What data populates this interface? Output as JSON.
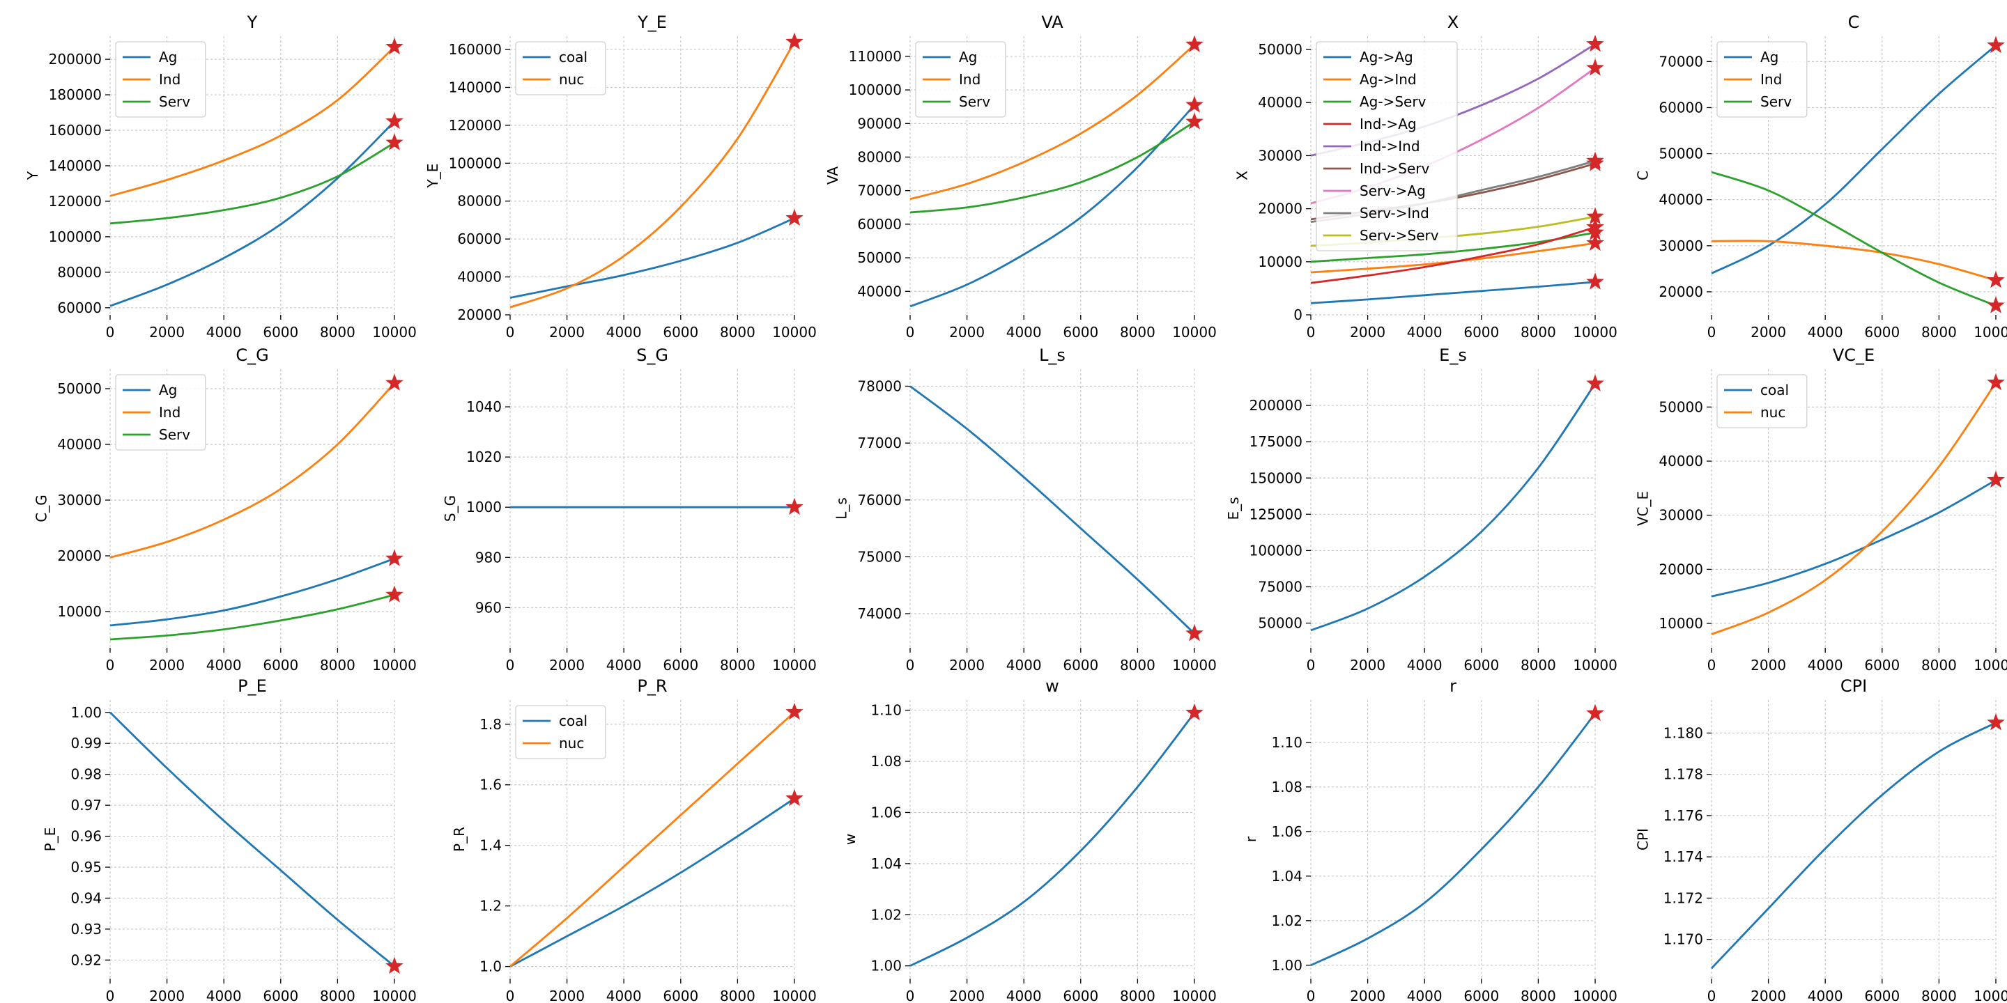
{
  "chart_data": [
    {
      "type": "line",
      "title": "Y",
      "ylabel": "Y",
      "xlim": [
        0,
        10000
      ],
      "ylim": [
        56000,
        213000
      ],
      "yticks": [
        60000,
        80000,
        100000,
        120000,
        140000,
        160000,
        180000,
        200000
      ],
      "series": [
        {
          "name": "Ag",
          "x": [
            0,
            2000,
            4000,
            6000,
            8000,
            10000
          ],
          "values": [
            61000,
            73000,
            88000,
            107000,
            133000,
            165000
          ]
        },
        {
          "name": "Ind",
          "x": [
            0,
            2000,
            4000,
            6000,
            8000,
            10000
          ],
          "values": [
            123000,
            132000,
            143000,
            157000,
            177000,
            207000
          ]
        },
        {
          "name": "Serv",
          "x": [
            0,
            2000,
            4000,
            6000,
            8000,
            10000
          ],
          "values": [
            107500,
            110500,
            115000,
            122000,
            134000,
            153000
          ]
        }
      ],
      "legend": "upper-left"
    },
    {
      "type": "line",
      "title": "Y_E",
      "ylabel": "Y_E",
      "xlim": [
        0,
        10000
      ],
      "ylim": [
        20000,
        167000
      ],
      "yticks": [
        20000,
        40000,
        60000,
        80000,
        100000,
        120000,
        140000,
        160000
      ],
      "series": [
        {
          "name": "coal",
          "x": [
            0,
            2000,
            4000,
            6000,
            8000,
            10000
          ],
          "values": [
            29000,
            35000,
            41000,
            48500,
            58000,
            71000
          ]
        },
        {
          "name": "nuc",
          "x": [
            0,
            2000,
            4000,
            6000,
            8000,
            10000
          ],
          "values": [
            24000,
            34000,
            51000,
            77000,
            113000,
            164000
          ]
        }
      ],
      "legend": "upper-left"
    },
    {
      "type": "line",
      "title": "VA",
      "ylabel": "VA",
      "xlim": [
        0,
        10000
      ],
      "ylim": [
        33000,
        116000
      ],
      "yticks": [
        40000,
        50000,
        60000,
        70000,
        80000,
        90000,
        100000,
        110000
      ],
      "series": [
        {
          "name": "Ag",
          "x": [
            0,
            2000,
            4000,
            6000,
            8000,
            10000
          ],
          "values": [
            35500,
            42000,
            51000,
            62000,
            77000,
            95500
          ]
        },
        {
          "name": "Ind",
          "x": [
            0,
            2000,
            4000,
            6000,
            8000,
            10000
          ],
          "values": [
            67500,
            72000,
            78500,
            87000,
            98500,
            113500
          ]
        },
        {
          "name": "Serv",
          "x": [
            0,
            2000,
            4000,
            6000,
            8000,
            10000
          ],
          "values": [
            63500,
            65000,
            68000,
            72500,
            80000,
            90500
          ]
        }
      ],
      "legend": "upper-left"
    },
    {
      "type": "line",
      "title": "X",
      "ylabel": "X",
      "xlim": [
        0,
        10000
      ],
      "ylim": [
        0,
        52500
      ],
      "yticks": [
        0,
        10000,
        20000,
        30000,
        40000,
        50000
      ],
      "series": [
        {
          "name": "Ag->Ag",
          "x": [
            0,
            2000,
            4000,
            6000,
            8000,
            10000
          ],
          "values": [
            2200,
            2900,
            3700,
            4500,
            5300,
            6200
          ]
        },
        {
          "name": "Ag->Ind",
          "x": [
            0,
            2000,
            4000,
            6000,
            8000,
            10000
          ],
          "values": [
            8000,
            8700,
            9500,
            10600,
            12000,
            13500
          ]
        },
        {
          "name": "Ag->Serv",
          "x": [
            0,
            2000,
            4000,
            6000,
            8000,
            10000
          ],
          "values": [
            10000,
            10700,
            11400,
            12400,
            13700,
            15500
          ]
        },
        {
          "name": "Ind->Ag",
          "x": [
            0,
            2000,
            4000,
            6000,
            8000,
            10000
          ],
          "values": [
            6000,
            7400,
            9000,
            11000,
            13300,
            16500
          ]
        },
        {
          "name": "Ind->Ind",
          "x": [
            0,
            2000,
            4000,
            6000,
            8000,
            10000
          ],
          "values": [
            30000,
            32500,
            35500,
            39500,
            44500,
            51000
          ]
        },
        {
          "name": "Ind->Serv",
          "x": [
            0,
            2000,
            4000,
            6000,
            8000,
            10000
          ],
          "values": [
            18000,
            19500,
            21000,
            23000,
            25500,
            28500
          ]
        },
        {
          "name": "Serv->Ag",
          "x": [
            0,
            2000,
            4000,
            6000,
            8000,
            10000
          ],
          "values": [
            21000,
            24000,
            28000,
            33000,
            39000,
            46500
          ]
        },
        {
          "name": "Serv->Ind",
          "x": [
            0,
            2000,
            4000,
            6000,
            8000,
            10000
          ],
          "values": [
            17500,
            19000,
            21000,
            23500,
            26000,
            29000
          ]
        },
        {
          "name": "Serv->Serv",
          "x": [
            0,
            2000,
            4000,
            6000,
            8000,
            10000
          ],
          "values": [
            13000,
            13600,
            14400,
            15300,
            16600,
            18500
          ]
        }
      ],
      "legend": "upper-left"
    },
    {
      "type": "line",
      "title": "C",
      "ylabel": "C",
      "xlim": [
        0,
        10000
      ],
      "ylim": [
        15000,
        75500
      ],
      "yticks": [
        20000,
        30000,
        40000,
        50000,
        60000,
        70000
      ],
      "series": [
        {
          "name": "Ag",
          "x": [
            0,
            2000,
            4000,
            6000,
            8000,
            10000
          ],
          "values": [
            24000,
            30000,
            39000,
            51000,
            63000,
            73500
          ]
        },
        {
          "name": "Ind",
          "x": [
            0,
            2000,
            4000,
            6000,
            8000,
            10000
          ],
          "values": [
            31000,
            31000,
            30000,
            28500,
            26000,
            22500
          ]
        },
        {
          "name": "Serv",
          "x": [
            0,
            2000,
            4000,
            6000,
            8000,
            10000
          ],
          "values": [
            46000,
            42000,
            35500,
            28500,
            22000,
            17000
          ]
        }
      ],
      "legend": "upper-left"
    },
    {
      "type": "line",
      "title": "C_G",
      "ylabel": "C_G",
      "xlim": [
        0,
        10000
      ],
      "ylim": [
        3500,
        53500
      ],
      "yticks": [
        10000,
        20000,
        30000,
        40000,
        50000
      ],
      "series": [
        {
          "name": "Ag",
          "x": [
            0,
            2000,
            4000,
            6000,
            8000,
            10000
          ],
          "values": [
            7500,
            8600,
            10200,
            12700,
            15800,
            19500
          ]
        },
        {
          "name": "Ind",
          "x": [
            0,
            2000,
            4000,
            6000,
            8000,
            10000
          ],
          "values": [
            19700,
            22500,
            26500,
            32000,
            40000,
            51000
          ]
        },
        {
          "name": "Serv",
          "x": [
            0,
            2000,
            4000,
            6000,
            8000,
            10000
          ],
          "values": [
            5000,
            5700,
            6800,
            8400,
            10400,
            13000
          ]
        }
      ],
      "legend": "upper-left"
    },
    {
      "type": "line",
      "title": "S_G",
      "ylabel": "S_G",
      "xlim": [
        0,
        10000
      ],
      "ylim": [
        944,
        1055
      ],
      "yticks": [
        960,
        980,
        1000,
        1020,
        1040
      ],
      "series": [
        {
          "x": [
            0,
            2000,
            4000,
            6000,
            8000,
            10000
          ],
          "values": [
            1000,
            1000,
            1000,
            1000,
            1000,
            1000
          ]
        }
      ]
    },
    {
      "type": "line",
      "title": "L_s",
      "ylabel": "L_s",
      "xlim": [
        0,
        10000
      ],
      "ylim": [
        73400,
        78300
      ],
      "yticks": [
        74000,
        75000,
        76000,
        77000,
        78000
      ],
      "series": [
        {
          "x": [
            0,
            2000,
            4000,
            6000,
            8000,
            10000
          ],
          "values": [
            78000,
            77250,
            76400,
            75500,
            74600,
            73650
          ]
        }
      ]
    },
    {
      "type": "line",
      "title": "E_s",
      "ylabel": "E_s",
      "xlim": [
        0,
        10000
      ],
      "ylim": [
        33000,
        225000
      ],
      "yticks": [
        50000,
        75000,
        100000,
        125000,
        150000,
        175000,
        200000
      ],
      "series": [
        {
          "x": [
            0,
            2000,
            4000,
            6000,
            8000,
            10000
          ],
          "values": [
            45000,
            60000,
            82000,
            113000,
            157000,
            215000
          ]
        }
      ]
    },
    {
      "type": "line",
      "title": "VC_E",
      "ylabel": "VC_E",
      "xlim": [
        0,
        10000
      ],
      "ylim": [
        5500,
        57000
      ],
      "yticks": [
        10000,
        20000,
        30000,
        40000,
        50000
      ],
      "series": [
        {
          "name": "coal",
          "x": [
            0,
            2000,
            4000,
            6000,
            8000,
            10000
          ],
          "values": [
            15000,
            17500,
            21000,
            25500,
            30500,
            36500
          ]
        },
        {
          "name": "nuc",
          "x": [
            0,
            2000,
            4000,
            6000,
            8000,
            10000
          ],
          "values": [
            8000,
            12000,
            18000,
            27000,
            39000,
            54500
          ]
        }
      ],
      "legend": "upper-left"
    },
    {
      "type": "line",
      "title": "P_E",
      "ylabel": "P_E",
      "xlim": [
        0,
        10000
      ],
      "ylim": [
        0.914,
        1.004
      ],
      "yticks": [
        0.92,
        0.93,
        0.94,
        0.95,
        0.96,
        0.97,
        0.98,
        0.99,
        1.0
      ],
      "series": [
        {
          "x": [
            0,
            2000,
            4000,
            6000,
            8000,
            10000
          ],
          "values": [
            1.0,
            0.982,
            0.965,
            0.949,
            0.933,
            0.918
          ]
        }
      ]
    },
    {
      "type": "line",
      "title": "P_R",
      "ylabel": "P_R",
      "xlim": [
        0,
        10000
      ],
      "ylim": [
        0.96,
        1.88
      ],
      "yticks": [
        1.0,
        1.2,
        1.4,
        1.6,
        1.8
      ],
      "series": [
        {
          "name": "coal",
          "x": [
            0,
            2000,
            4000,
            6000,
            8000,
            10000
          ],
          "values": [
            1.0,
            1.1,
            1.2,
            1.31,
            1.43,
            1.555
          ]
        },
        {
          "name": "nuc",
          "x": [
            0,
            2000,
            4000,
            6000,
            8000,
            10000
          ],
          "values": [
            1.0,
            1.16,
            1.33,
            1.5,
            1.67,
            1.84
          ]
        }
      ],
      "legend": "upper-left"
    },
    {
      "type": "line",
      "title": "w",
      "ylabel": "w",
      "xlim": [
        0,
        10000
      ],
      "ylim": [
        0.995,
        1.104
      ],
      "yticks": [
        1.0,
        1.02,
        1.04,
        1.06,
        1.08,
        1.1
      ],
      "series": [
        {
          "x": [
            0,
            2000,
            4000,
            6000,
            8000,
            10000
          ],
          "values": [
            1.0,
            1.011,
            1.025,
            1.045,
            1.07,
            1.099
          ]
        }
      ]
    },
    {
      "type": "line",
      "title": "r",
      "ylabel": "r",
      "xlim": [
        0,
        10000
      ],
      "ylim": [
        0.994,
        1.119
      ],
      "yticks": [
        1.0,
        1.02,
        1.04,
        1.06,
        1.08,
        1.1
      ],
      "series": [
        {
          "x": [
            0,
            2000,
            4000,
            6000,
            8000,
            10000
          ],
          "values": [
            1.0,
            1.012,
            1.028,
            1.052,
            1.08,
            1.113
          ]
        }
      ]
    },
    {
      "type": "line",
      "title": "CPI",
      "ylabel": "CPI",
      "xlim": [
        0,
        10000
      ],
      "ylim": [
        1.1681,
        1.1816
      ],
      "yticks": [
        1.17,
        1.172,
        1.174,
        1.176,
        1.178,
        1.18
      ],
      "series": [
        {
          "x": [
            0,
            2000,
            4000,
            6000,
            8000,
            10000
          ],
          "values": [
            1.1686,
            1.1715,
            1.1744,
            1.177,
            1.1791,
            1.1805
          ]
        }
      ]
    }
  ],
  "xticks": [
    0,
    2000,
    4000,
    6000,
    8000,
    10000
  ],
  "colors": {
    "palette": [
      "#1f77b4",
      "#ff7f0e",
      "#2ca02c",
      "#d62728",
      "#9467bd",
      "#8c564b",
      "#e377c2",
      "#7f7f7f",
      "#bcbd22"
    ],
    "marker": "#d62728",
    "grid": "#c8c8c8"
  },
  "end_marker": "star"
}
